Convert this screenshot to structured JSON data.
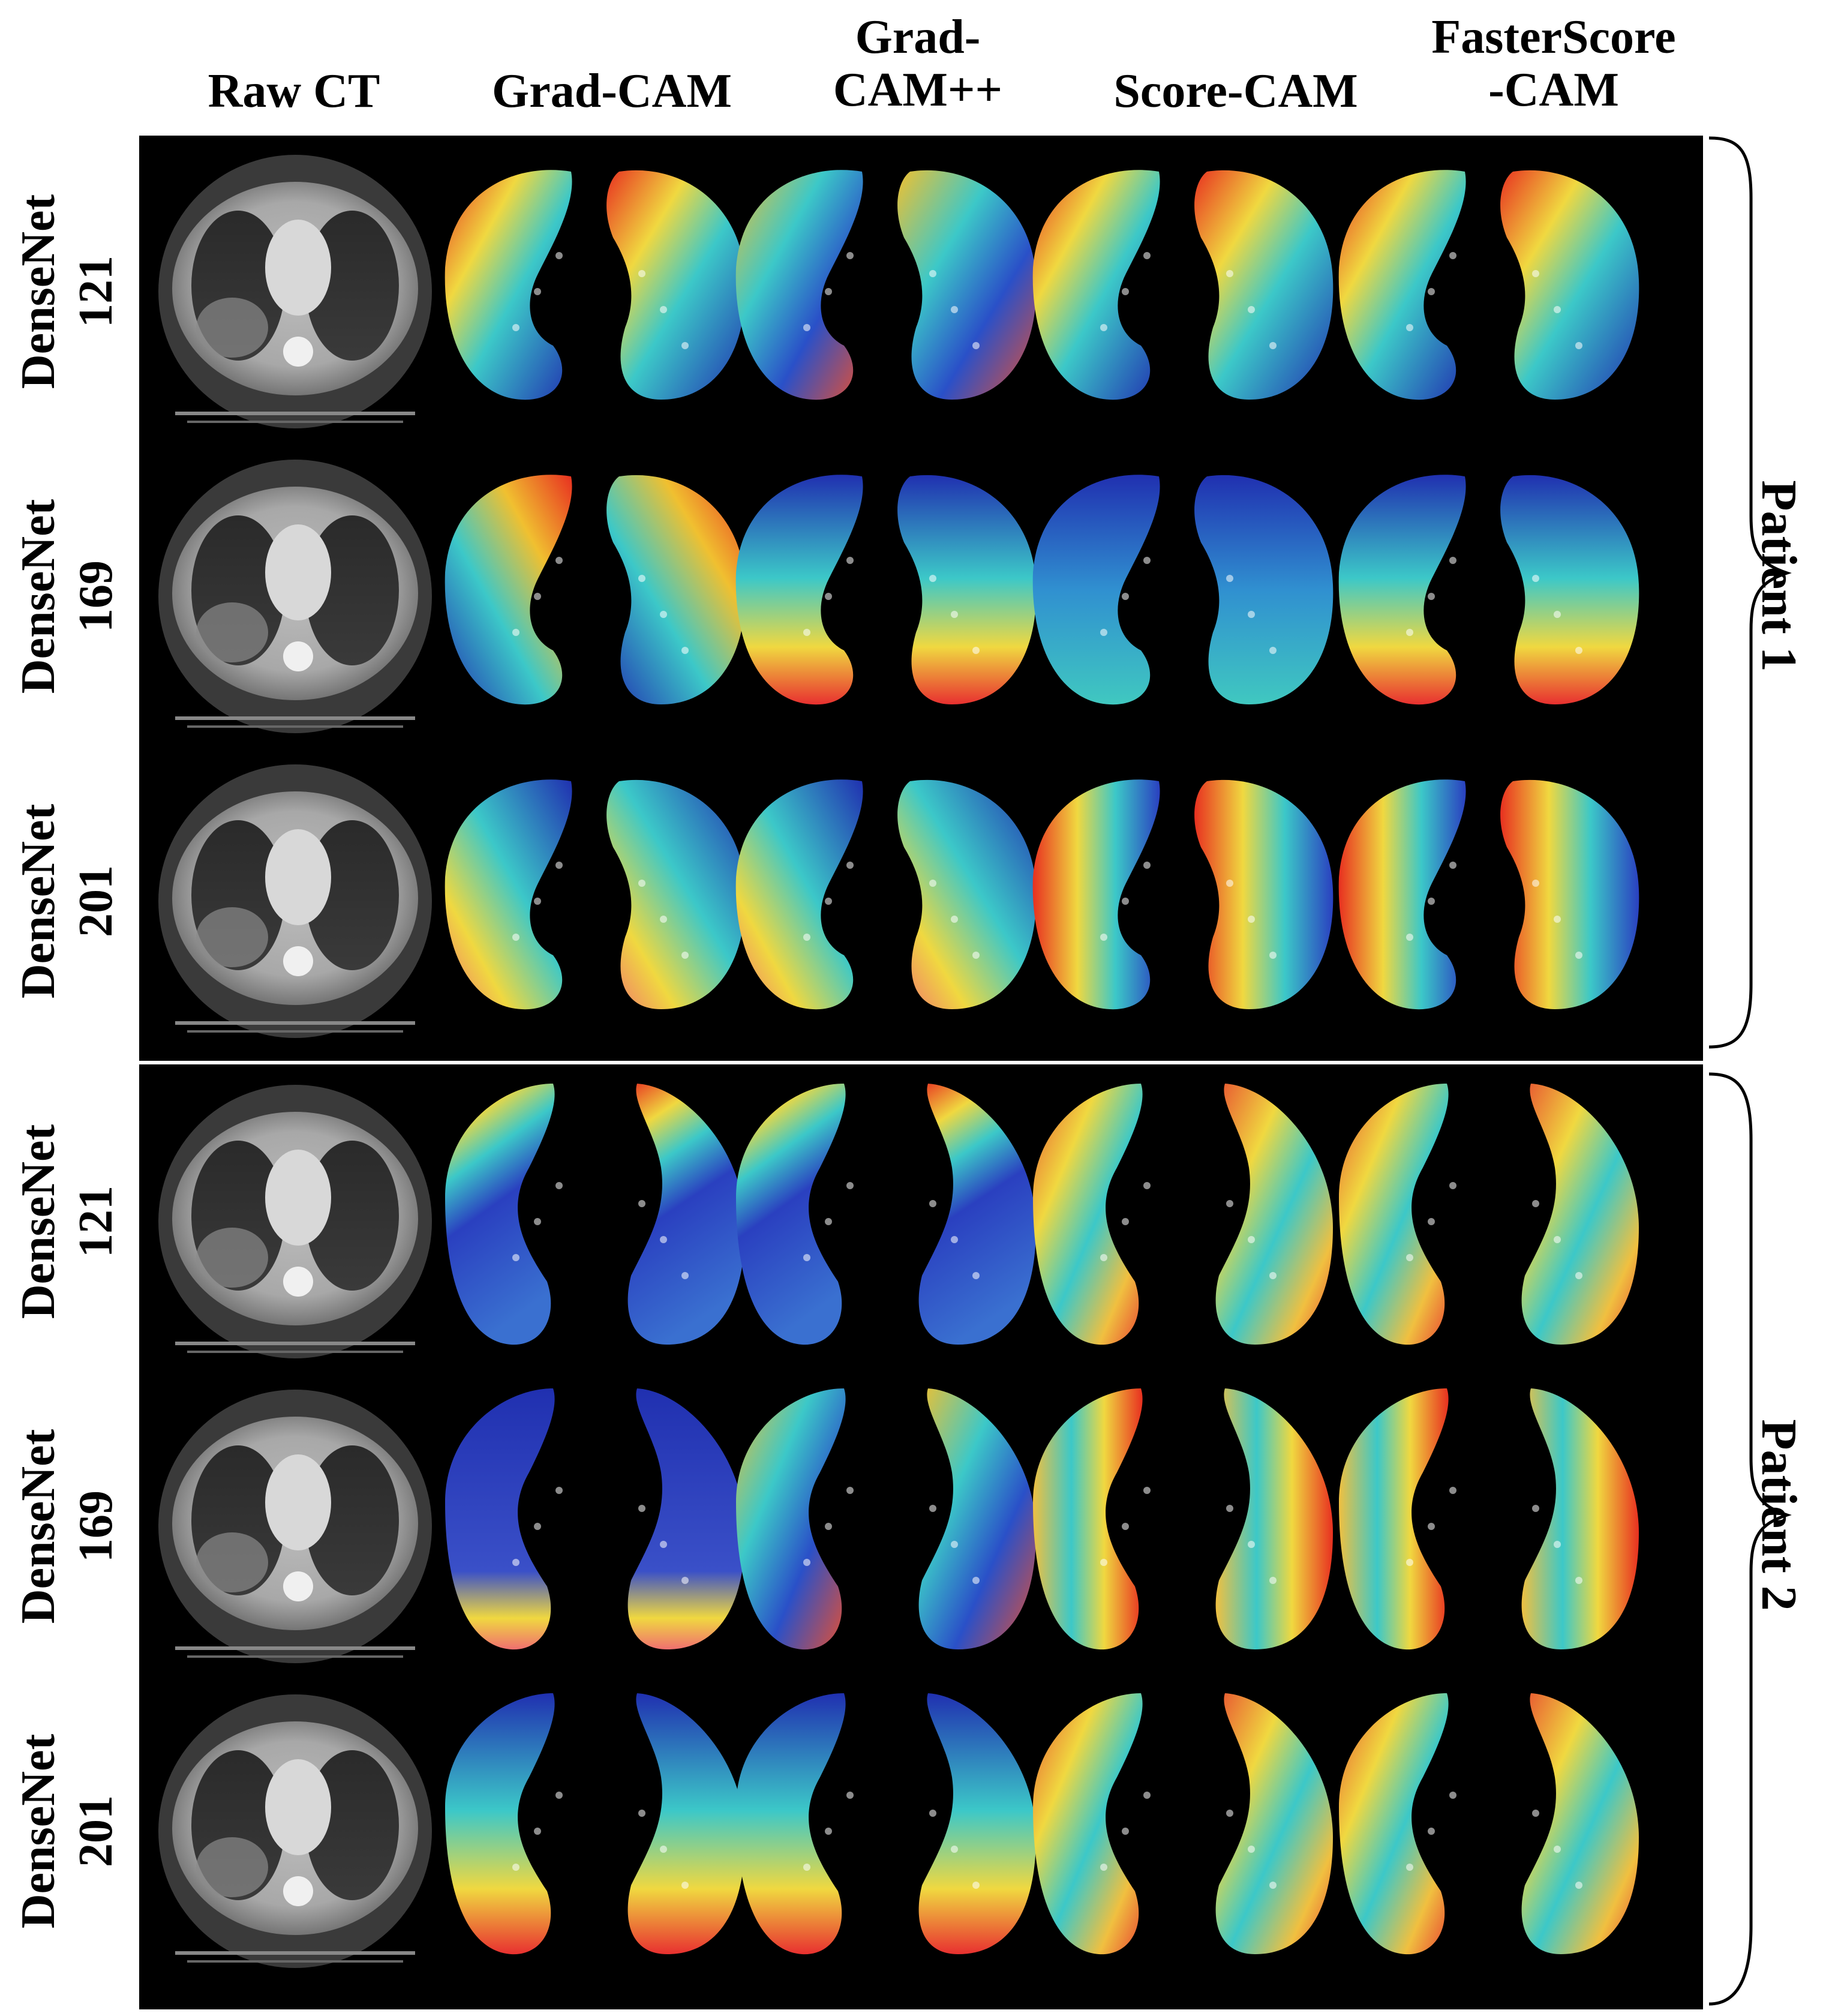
{
  "columns": [
    "Raw CT",
    "Grad-CAM",
    "Grad-CAM++",
    "Score-CAM",
    "FasterScore-CAM"
  ],
  "column_headers": {
    "raw_ct": [
      "Raw CT"
    ],
    "grad_cam": [
      "Grad-CAM"
    ],
    "grad_cam_pp": [
      "Grad-",
      "CAM++"
    ],
    "score_cam": [
      "Score-CAM"
    ],
    "fasterscore_cam": [
      "FasterScore",
      "-CAM"
    ]
  },
  "patients": [
    {
      "label": "Patient 1",
      "rows": [
        {
          "model": "DenseNet",
          "depth": "121",
          "heat": [
            "hot-upper-left",
            "mixed",
            "hot-upper-left",
            "hot-upper-left"
          ]
        },
        {
          "model": "DenseNet",
          "depth": "169",
          "heat": [
            "hot-upper-right",
            "hot-lower",
            "cool",
            "hot-lower"
          ]
        },
        {
          "model": "DenseNet",
          "depth": "201",
          "heat": [
            "hot-lower-left",
            "hot-lower-left",
            "hot-left",
            "hot-left"
          ]
        }
      ]
    },
    {
      "label": "Patient 2",
      "rows": [
        {
          "model": "DenseNet",
          "depth": "121",
          "heat": [
            "hot-apex",
            "hot-apex",
            "warm",
            "warm"
          ]
        },
        {
          "model": "DenseNet",
          "depth": "169",
          "heat": [
            "cool-lower-hot",
            "mixed",
            "warm-right",
            "warm-right"
          ]
        },
        {
          "model": "DenseNet",
          "depth": "201",
          "heat": [
            "hot-lower",
            "hot-lower",
            "warm",
            "warm"
          ]
        }
      ]
    }
  ],
  "colors": {
    "background": "#000000",
    "divider": "#ffffff",
    "heatmap_cold": "#1e2fb8",
    "heatmap_mid": "#3cc8c8",
    "heatmap_warm": "#f0d840",
    "heatmap_hot": "#e83020"
  }
}
